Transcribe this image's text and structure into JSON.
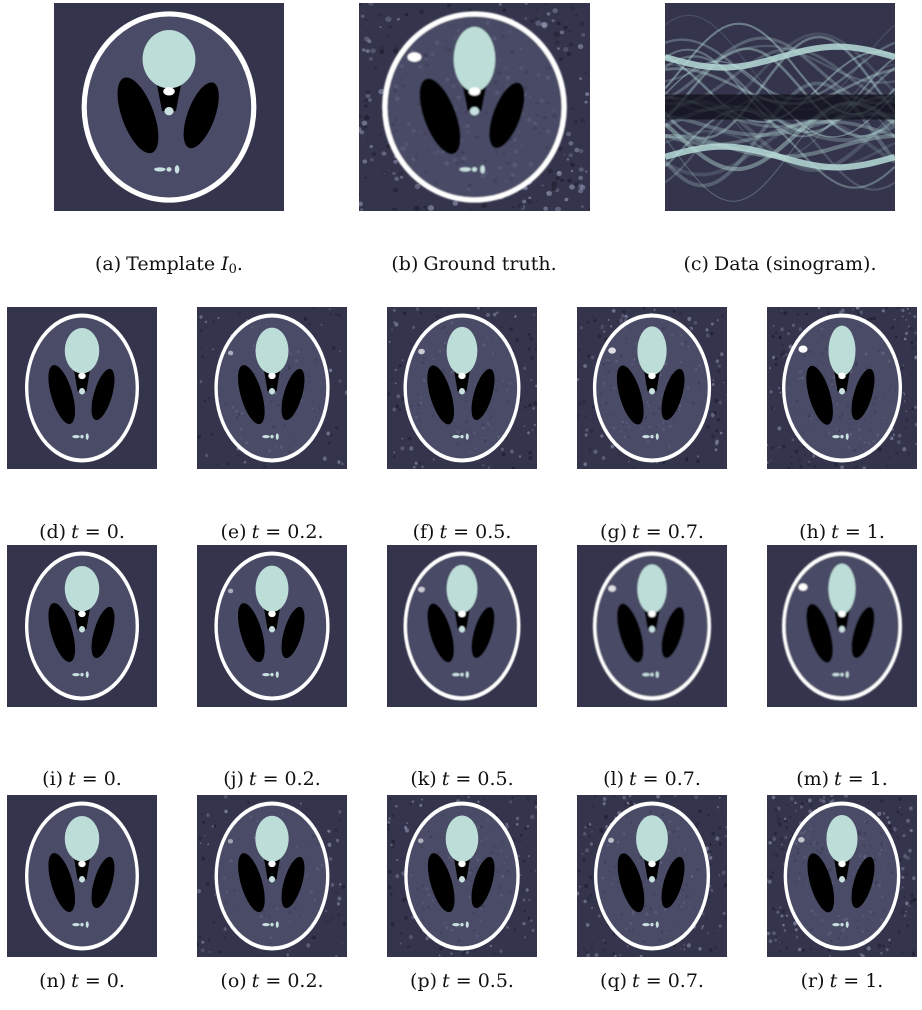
{
  "figure": {
    "top": [
      {
        "id": "a",
        "label": "(a)",
        "text": "Template",
        "math_symbol": "I",
        "math_sub": "0",
        "suffix": ".",
        "kind": "template"
      },
      {
        "id": "b",
        "label": "(b)",
        "text": "Ground truth.",
        "kind": "truth"
      },
      {
        "id": "c",
        "label": "(c)",
        "text": "Data (sinogram).",
        "kind": "sinogram"
      }
    ],
    "rows": [
      {
        "row_id": "row1",
        "panels": [
          {
            "id": "d",
            "label": "(d)",
            "t": "0",
            "deform": 0.0,
            "noise": 0.0,
            "blur": 0.0
          },
          {
            "id": "e",
            "label": "(e)",
            "t": "0.2",
            "deform": 0.2,
            "noise": 0.35,
            "blur": 0.0
          },
          {
            "id": "f",
            "label": "(f)",
            "t": "0.5",
            "deform": 0.5,
            "noise": 0.5,
            "blur": 0.0
          },
          {
            "id": "g",
            "label": "(g)",
            "t": "0.7",
            "deform": 0.7,
            "noise": 0.6,
            "blur": 0.0
          },
          {
            "id": "h",
            "label": "(h)",
            "t": "1",
            "deform": 1.0,
            "noise": 0.7,
            "blur": 0.0
          }
        ]
      },
      {
        "row_id": "row2",
        "panels": [
          {
            "id": "i",
            "label": "(i)",
            "t": "0",
            "deform": 0.0,
            "noise": 0.0,
            "blur": 0.0
          },
          {
            "id": "j",
            "label": "(j)",
            "t": "0.2",
            "deform": 0.2,
            "noise": 0.0,
            "blur": 0.3
          },
          {
            "id": "k",
            "label": "(k)",
            "t": "0.5",
            "deform": 0.5,
            "noise": 0.0,
            "blur": 0.5
          },
          {
            "id": "l",
            "label": "(l)",
            "t": "0.7",
            "deform": 0.7,
            "noise": 0.0,
            "blur": 0.6
          },
          {
            "id": "m",
            "label": "(m)",
            "t": "1",
            "deform": 1.0,
            "noise": 0.0,
            "blur": 0.7
          }
        ]
      },
      {
        "row_id": "row3",
        "panels": [
          {
            "id": "n",
            "label": "(n)",
            "t": "0",
            "deform": 0.0,
            "noise": 0.0,
            "blur": 0.0
          },
          {
            "id": "o",
            "label": "(o)",
            "t": "0.2",
            "deform": 0.15,
            "noise": 0.35,
            "blur": 0.0
          },
          {
            "id": "p",
            "label": "(p)",
            "t": "0.5",
            "deform": 0.25,
            "noise": 0.55,
            "blur": 0.0
          },
          {
            "id": "q",
            "label": "(q)",
            "t": "0.7",
            "deform": 0.35,
            "noise": 0.65,
            "blur": 0.0
          },
          {
            "id": "r",
            "label": "(r)",
            "t": "1",
            "deform": 0.45,
            "noise": 0.8,
            "blur": 0.0
          }
        ]
      }
    ],
    "t_symbol": "t",
    "equals": "=",
    "period": "."
  },
  "colors": {
    "background": "#34344c",
    "ellipse_inner": "#4a4b66",
    "skull": "#ffffff",
    "bright": "#bdddd8",
    "dark": "#000000",
    "small": "#c8e0e0",
    "sinogram_line": "#b7dcd8"
  }
}
